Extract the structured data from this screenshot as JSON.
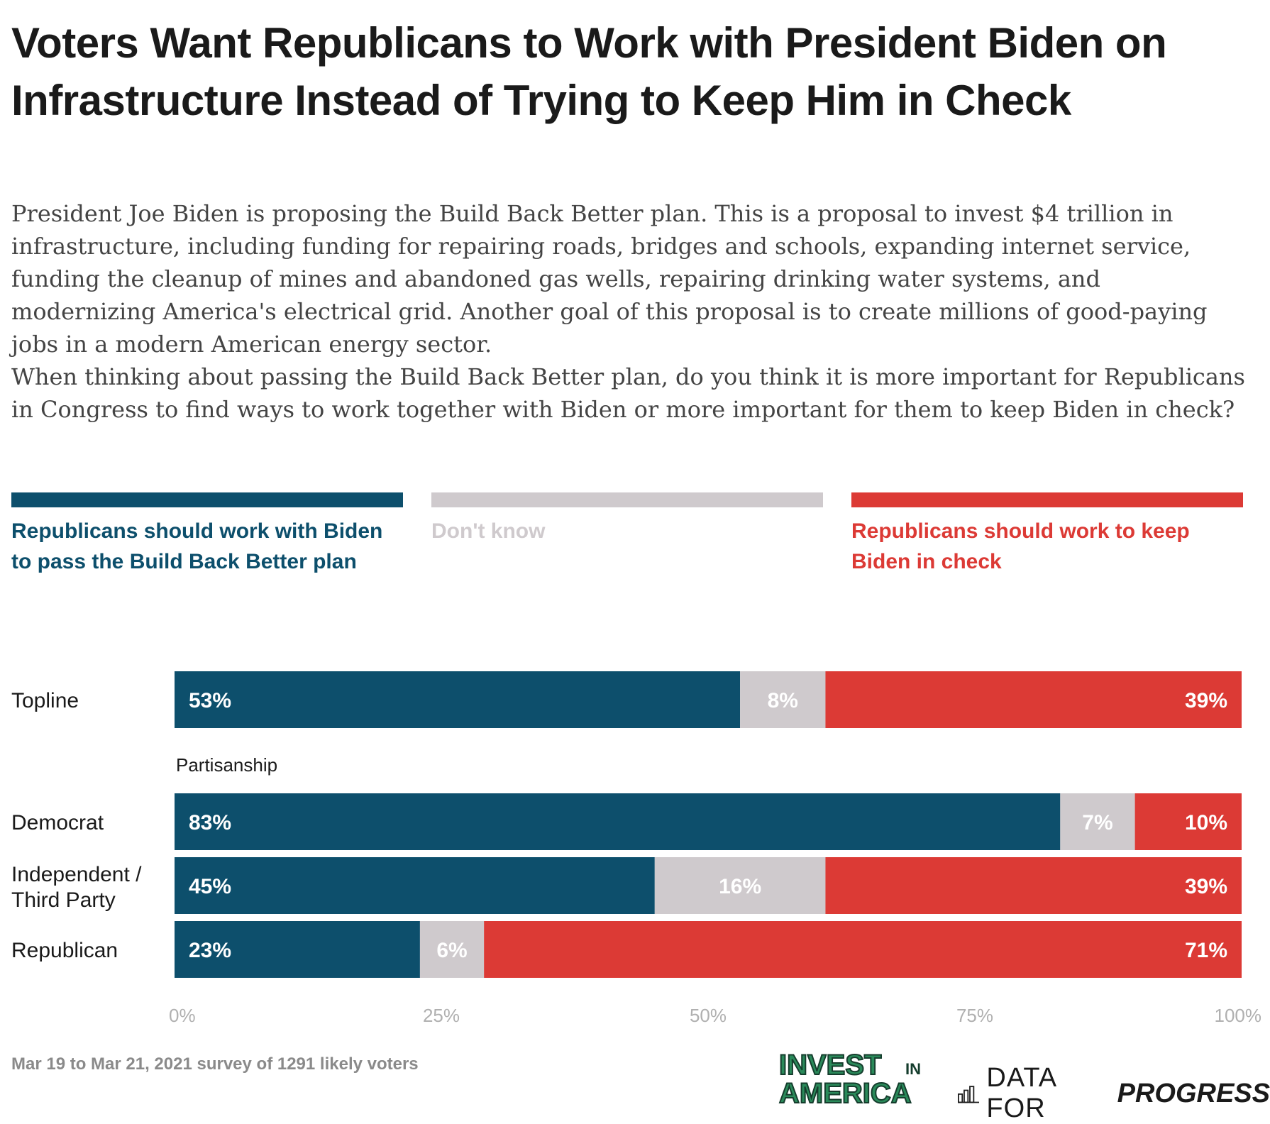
{
  "title": "Voters Want Republicans to Work with President Biden on Infrastructure Instead of Trying to Keep Him in Check",
  "subtitle": [
    "President Joe Biden is proposing the Build Back Better plan. This is a proposal to invest $4 trillion in infrastructure, including funding for repairing roads, bridges and schools, expanding internet service, funding the cleanup of mines and abandoned gas wells, repairing drinking water systems, and modernizing America's electrical grid. Another goal of this proposal is to create millions of good-paying jobs in a modern American energy sector.",
    "When thinking about passing the Build Back Better plan, do you think it is more important for Republicans in Congress to find ways to work together with Biden or more important for them to keep Biden in check?"
  ],
  "legend": [
    {
      "label": "Republicans should work with Biden to pass the Build Back Better plan",
      "color": "#0d4f6c"
    },
    {
      "label": "Don't know",
      "color": "#cfcacd"
    },
    {
      "label": "Republicans should work to keep Biden in check",
      "color": "#dc3a35"
    }
  ],
  "chart_data": {
    "type": "bar",
    "orientation": "horizontal",
    "stacked": true,
    "categories": [
      "Topline",
      "Democrat",
      "Independent / Third Party",
      "Republican"
    ],
    "group_label": "Partisanship",
    "series": [
      {
        "name": "Republicans should work with Biden to pass the Build Back Better plan",
        "color": "#0d4f6c",
        "values": [
          53,
          83,
          45,
          23
        ]
      },
      {
        "name": "Don't know",
        "color": "#cfcacd",
        "values": [
          8,
          7,
          16,
          6
        ]
      },
      {
        "name": "Republicans should work to keep Biden in check",
        "color": "#dc3a35",
        "values": [
          39,
          10,
          39,
          71
        ]
      }
    ],
    "xlim": [
      0,
      100
    ],
    "xticks": [
      "0%",
      "25%",
      "50%",
      "75%",
      "100%"
    ],
    "tick_values": [
      0,
      25,
      50,
      75,
      100
    ],
    "value_suffix": "%"
  },
  "footnote": "Mar 19 to Mar 21, 2021 survey of 1291 likely voters",
  "logos": {
    "invest_line1": "INVEST",
    "invest_in": "IN",
    "invest_line2": "AMERICA",
    "dfp_word": "DATA FOR",
    "dfp_strong": "PROGRESS"
  }
}
